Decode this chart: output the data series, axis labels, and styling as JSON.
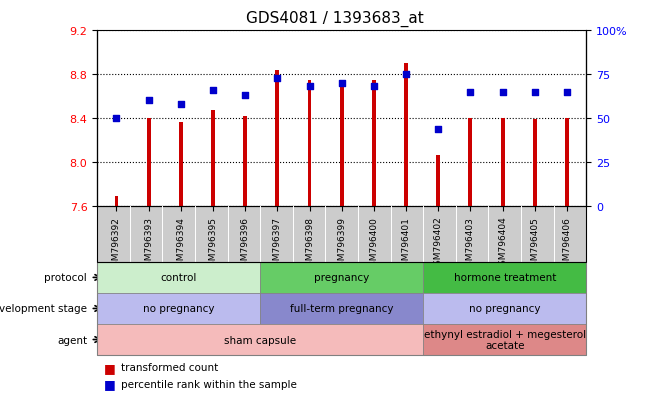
{
  "title": "GDS4081 / 1393683_at",
  "samples": [
    "GSM796392",
    "GSM796393",
    "GSM796394",
    "GSM796395",
    "GSM796396",
    "GSM796397",
    "GSM796398",
    "GSM796399",
    "GSM796400",
    "GSM796401",
    "GSM796402",
    "GSM796403",
    "GSM796404",
    "GSM796405",
    "GSM796406"
  ],
  "transformed_count": [
    7.69,
    8.4,
    8.36,
    8.47,
    8.42,
    8.84,
    8.75,
    8.75,
    8.75,
    8.9,
    8.06,
    8.4,
    8.4,
    8.39,
    8.4
  ],
  "percentile_rank": [
    50,
    60,
    58,
    66,
    63,
    73,
    68,
    70,
    68,
    75,
    44,
    65,
    65,
    65,
    65
  ],
  "ylim_left": [
    7.6,
    9.2
  ],
  "ylim_right": [
    0,
    100
  ],
  "yticks_left": [
    7.6,
    8.0,
    8.4,
    8.8,
    9.2
  ],
  "yticks_right": [
    0,
    25,
    50,
    75,
    100
  ],
  "ytick_right_labels": [
    "0",
    "25",
    "50",
    "75",
    "100%"
  ],
  "bar_color": "#cc0000",
  "dot_color": "#0000cc",
  "bar_bottom": 7.6,
  "bar_width": 0.12,
  "protocol_groups": [
    {
      "label": "control",
      "start": 0,
      "end": 5,
      "color": "#cceecc"
    },
    {
      "label": "pregnancy",
      "start": 5,
      "end": 10,
      "color": "#66cc66"
    },
    {
      "label": "hormone treatment",
      "start": 10,
      "end": 15,
      "color": "#44bb44"
    }
  ],
  "dev_stage_groups": [
    {
      "label": "no pregnancy",
      "start": 0,
      "end": 5,
      "color": "#bbbbee"
    },
    {
      "label": "full-term pregnancy",
      "start": 5,
      "end": 10,
      "color": "#8888cc"
    },
    {
      "label": "no pregnancy",
      "start": 10,
      "end": 15,
      "color": "#bbbbee"
    }
  ],
  "agent_groups": [
    {
      "label": "sham capsule",
      "start": 0,
      "end": 10,
      "color": "#f5bbbb"
    },
    {
      "label": "ethynyl estradiol + megesterol\nacetate",
      "start": 10,
      "end": 15,
      "color": "#dd8888"
    }
  ],
  "row_labels": [
    "protocol",
    "development stage",
    "agent"
  ],
  "xtick_bg": "#cccccc",
  "background_color": "#ffffff"
}
